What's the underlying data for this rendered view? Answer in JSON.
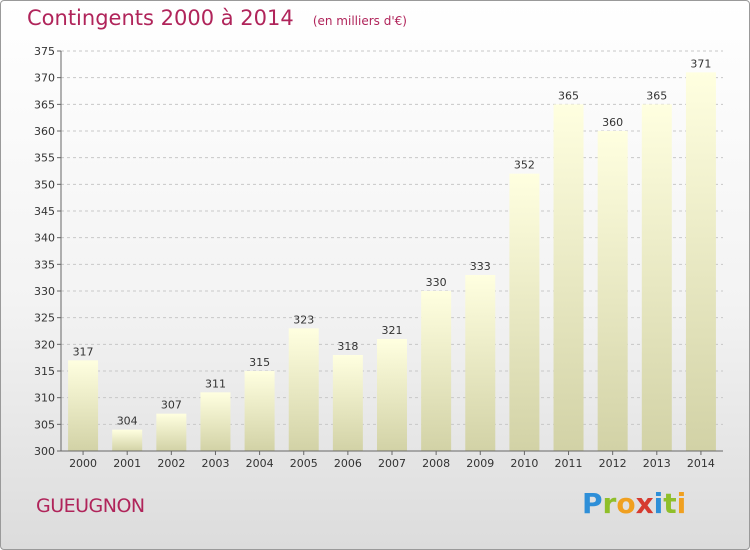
{
  "header": {
    "title": "Contingents 2000 à 2014",
    "subtitle": "(en milliers d'€)"
  },
  "footer": {
    "place": "GUEUGNON",
    "logo": "Proxiti"
  },
  "colors": {
    "title": "#b0245a",
    "bar_top": "#ffffe0",
    "bar_bottom": "#d2d2a6",
    "grid": "#c8c8c8"
  },
  "chart_data": {
    "type": "bar",
    "title": "Contingents 2000 à 2014",
    "subtitle": "(en milliers d'€)",
    "xlabel": "",
    "ylabel": "",
    "categories": [
      "2000",
      "2001",
      "2002",
      "2003",
      "2004",
      "2005",
      "2006",
      "2007",
      "2008",
      "2009",
      "2010",
      "2011",
      "2012",
      "2013",
      "2014"
    ],
    "values": [
      317,
      304,
      307,
      311,
      315,
      323,
      318,
      321,
      330,
      333,
      352,
      365,
      360,
      365,
      371
    ],
    "data_labels": [
      "317",
      "304",
      "307",
      "311",
      "315",
      "323",
      "318",
      "321",
      "330",
      "333",
      "352",
      "365",
      "360",
      "365",
      "371"
    ],
    "ylim": [
      300,
      375
    ],
    "yticks": [
      300,
      305,
      310,
      315,
      320,
      325,
      330,
      335,
      340,
      345,
      350,
      355,
      360,
      365,
      370,
      375
    ],
    "grid": true,
    "grid_style": "dashed horizontal"
  }
}
